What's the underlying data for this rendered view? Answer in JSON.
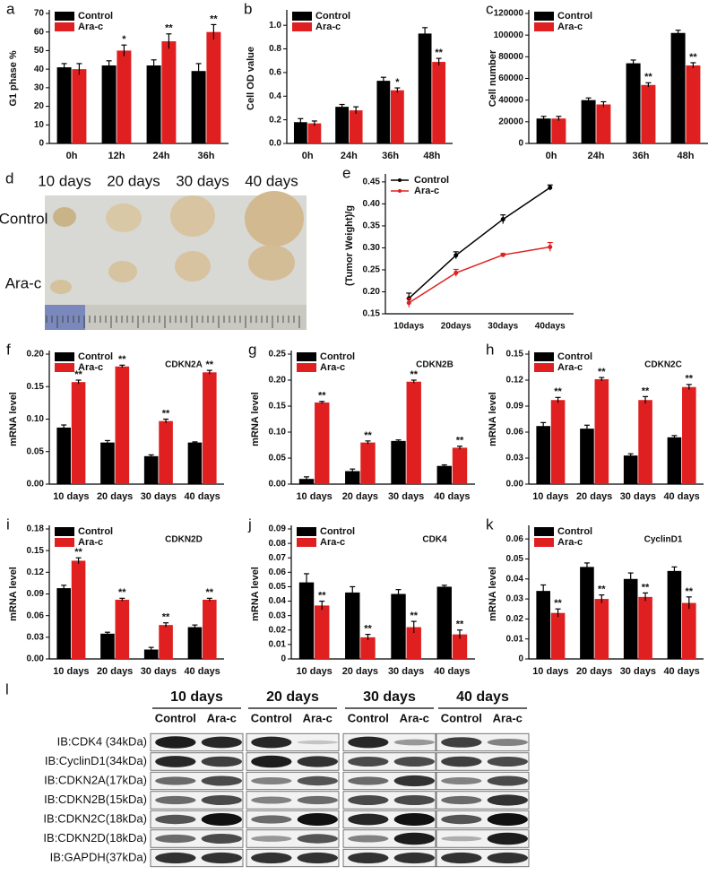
{
  "chart_data": [
    {
      "type": "bar",
      "panel": "a",
      "ylabel": "G1 phase %",
      "categories": [
        "0h",
        "12h",
        "24h",
        "36h"
      ],
      "series": [
        {
          "name": "Control",
          "color": "#000000",
          "values": [
            41,
            42,
            42,
            39
          ],
          "errors": [
            2,
            2.5,
            3,
            4
          ]
        },
        {
          "name": "Ara-c",
          "color": "#e02020",
          "values": [
            40,
            50,
            55,
            60
          ],
          "errors": [
            3,
            3,
            4,
            4
          ],
          "annotations": [
            null,
            "*",
            "**",
            "**"
          ]
        }
      ],
      "ylim": [
        0,
        70
      ],
      "yticks": [
        0,
        10,
        20,
        30,
        40,
        50,
        60,
        70
      ]
    },
    {
      "type": "bar",
      "panel": "b",
      "ylabel": "Cell OD value",
      "categories": [
        "0h",
        "24h",
        "36h",
        "48h"
      ],
      "series": [
        {
          "name": "Control",
          "color": "#000000",
          "values": [
            0.18,
            0.31,
            0.53,
            0.93
          ],
          "errors": [
            0.03,
            0.02,
            0.03,
            0.05
          ]
        },
        {
          "name": "Ara-c",
          "color": "#e02020",
          "values": [
            0.17,
            0.28,
            0.45,
            0.69
          ],
          "errors": [
            0.02,
            0.03,
            0.02,
            0.03
          ],
          "annotations": [
            null,
            null,
            "*",
            "**"
          ]
        }
      ],
      "ylim": [
        0,
        1.1
      ],
      "yticks": [
        {
          "value": 0,
          "label": "0.0"
        },
        0.2,
        0.4,
        0.6,
        0.8,
        {
          "value": 1,
          "label": "1.0"
        }
      ]
    },
    {
      "type": "bar",
      "panel": "c",
      "ylabel": "Cell number",
      "categories": [
        "0h",
        "24h",
        "36h",
        "48h"
      ],
      "series": [
        {
          "name": "Control",
          "color": "#000000",
          "values": [
            23000,
            40000,
            74000,
            102000
          ],
          "errors": [
            2000,
            2000,
            3000,
            2500
          ]
        },
        {
          "name": "Ara-c",
          "color": "#e02020",
          "values": [
            23000,
            36000,
            54000,
            72000
          ],
          "errors": [
            2000,
            2500,
            2000,
            2500
          ],
          "annotations": [
            null,
            null,
            "**",
            "**"
          ]
        }
      ],
      "ylim": [
        0,
        120000
      ],
      "yticks": [
        0,
        20000,
        40000,
        60000,
        80000,
        100000,
        120000
      ]
    },
    {
      "type": "line",
      "panel": "e",
      "ylabel": "(Tumor Weight)/g",
      "categories": [
        "10days",
        "20days",
        "30days",
        "40days"
      ],
      "series": [
        {
          "name": "Control",
          "color": "#000000",
          "values": [
            0.185,
            0.283,
            0.365,
            0.437
          ],
          "errors": [
            0.012,
            0.008,
            0.01,
            0.006
          ]
        },
        {
          "name": "Ara-c",
          "color": "#e02020",
          "values": [
            0.175,
            0.243,
            0.284,
            0.302
          ],
          "errors": [
            0.01,
            0.008,
            0.003,
            0.01
          ]
        }
      ],
      "ylim": [
        0.15,
        0.46
      ],
      "yticks": [
        0.15,
        {
          "value": 0.2,
          "label": "0.20"
        },
        0.25,
        {
          "value": 0.3,
          "label": "0.30"
        },
        0.35,
        {
          "value": 0.4,
          "label": "0.40"
        },
        0.45
      ]
    },
    {
      "type": "bar",
      "panel": "f",
      "title": "CDKN2A",
      "ylabel": "mRNA level",
      "categories": [
        "10 days",
        "20 days",
        "30 days",
        "40 days"
      ],
      "series": [
        {
          "name": "Control",
          "color": "#000000",
          "values": [
            0.087,
            0.064,
            0.043,
            0.064
          ],
          "errors": [
            0.004,
            0.003,
            0.002,
            0.001
          ]
        },
        {
          "name": "Ara-c",
          "color": "#e02020",
          "values": [
            0.157,
            0.181,
            0.097,
            0.172
          ],
          "errors": [
            0.003,
            0.002,
            0.003,
            0.003
          ],
          "annotations": [
            "**",
            "**",
            "**",
            "**"
          ]
        }
      ],
      "ylim": [
        0,
        0.2
      ],
      "yticks": [
        {
          "value": 0,
          "label": "0.00"
        },
        0.05,
        {
          "value": 0.1,
          "label": "0.10"
        },
        0.15,
        {
          "value": 0.2,
          "label": "0.20"
        }
      ]
    },
    {
      "type": "bar",
      "panel": "g",
      "title": "CDKN2B",
      "ylabel": "mRNA level",
      "categories": [
        "10 days",
        "20 days",
        "30 days",
        "40 days"
      ],
      "series": [
        {
          "name": "Control",
          "color": "#000000",
          "values": [
            0.01,
            0.025,
            0.083,
            0.035
          ],
          "errors": [
            0.004,
            0.004,
            0.002,
            0.002
          ]
        },
        {
          "name": "Ara-c",
          "color": "#e02020",
          "values": [
            0.157,
            0.08,
            0.197,
            0.07
          ],
          "errors": [
            0.002,
            0.003,
            0.003,
            0.003
          ],
          "annotations": [
            "**",
            "**",
            "**",
            "**"
          ]
        }
      ],
      "ylim": [
        0,
        0.25
      ],
      "yticks": [
        {
          "value": 0,
          "label": "0.00"
        },
        0.05,
        {
          "value": 0.1,
          "label": "0.10"
        },
        0.15,
        {
          "value": 0.2,
          "label": "0.20"
        },
        0.25
      ]
    },
    {
      "type": "bar",
      "panel": "h",
      "title": "CDKN2C",
      "ylabel": "mRNA level",
      "categories": [
        "10 days",
        "20 days",
        "30 days",
        "40 days"
      ],
      "series": [
        {
          "name": "Control",
          "color": "#000000",
          "values": [
            0.067,
            0.064,
            0.033,
            0.054
          ],
          "errors": [
            0.004,
            0.004,
            0.002,
            0.002
          ]
        },
        {
          "name": "Ara-c",
          "color": "#e02020",
          "values": [
            0.097,
            0.121,
            0.097,
            0.112
          ],
          "errors": [
            0.003,
            0.002,
            0.004,
            0.003
          ],
          "annotations": [
            "**",
            "**",
            "**",
            "**"
          ]
        }
      ],
      "ylim": [
        0,
        0.15
      ],
      "yticks": [
        {
          "value": 0,
          "label": "0.00"
        },
        0.03,
        0.06,
        0.09,
        0.12,
        0.15
      ]
    },
    {
      "type": "bar",
      "panel": "i",
      "title": "CDKN2D",
      "ylabel": "mRNA level",
      "categories": [
        "10 days",
        "20 days",
        "30 days",
        "40 days"
      ],
      "series": [
        {
          "name": "Control",
          "color": "#000000",
          "values": [
            0.098,
            0.035,
            0.013,
            0.044
          ],
          "errors": [
            0.004,
            0.002,
            0.003,
            0.003
          ]
        },
        {
          "name": "Ara-c",
          "color": "#e02020",
          "values": [
            0.136,
            0.082,
            0.047,
            0.082
          ],
          "errors": [
            0.004,
            0.002,
            0.003,
            0.002
          ],
          "annotations": [
            "**",
            "**",
            "**",
            "**"
          ]
        }
      ],
      "ylim": [
        0,
        0.18
      ],
      "yticks": [
        {
          "value": 0,
          "label": "0.00"
        },
        0.03,
        0.06,
        0.09,
        0.12,
        0.15,
        0.18
      ]
    },
    {
      "type": "bar",
      "panel": "j",
      "title": "CDK4",
      "ylabel": "mRNA level",
      "categories": [
        "10 days",
        "20 days",
        "30 days",
        "40 days"
      ],
      "series": [
        {
          "name": "Control",
          "color": "#000000",
          "values": [
            0.053,
            0.046,
            0.045,
            0.05
          ],
          "errors": [
            0.006,
            0.004,
            0.003,
            0.001
          ]
        },
        {
          "name": "Ara-c",
          "color": "#e02020",
          "values": [
            0.037,
            0.015,
            0.022,
            0.017
          ],
          "errors": [
            0.003,
            0.002,
            0.004,
            0.003
          ],
          "annotations": [
            "**",
            "**",
            "**",
            "**"
          ]
        }
      ],
      "ylim": [
        0,
        0.09
      ],
      "yticks": [
        0,
        0.01,
        0.02,
        0.03,
        0.04,
        0.05,
        0.06,
        0.07,
        0.08,
        0.09
      ]
    },
    {
      "type": "bar",
      "panel": "k",
      "title": "CyclinD1",
      "ylabel": "mRNA level",
      "categories": [
        "10 days",
        "20 days",
        "30 days",
        "40 days"
      ],
      "series": [
        {
          "name": "Control",
          "color": "#000000",
          "values": [
            0.034,
            0.046,
            0.04,
            0.044
          ],
          "errors": [
            0.003,
            0.002,
            0.003,
            0.002
          ]
        },
        {
          "name": "Ara-c",
          "color": "#e02020",
          "values": [
            0.023,
            0.03,
            0.031,
            0.028
          ],
          "errors": [
            0.002,
            0.002,
            0.002,
            0.003
          ],
          "annotations": [
            "**",
            "**",
            "**",
            "**"
          ]
        }
      ],
      "ylim": [
        0,
        0.065
      ],
      "yticks": [
        0,
        0.01,
        0.02,
        0.03,
        0.04,
        0.05,
        0.06
      ]
    }
  ],
  "photo": {
    "panel": "d",
    "columns": [
      "10 days",
      "20 days",
      "30 days",
      "40 days"
    ],
    "rows": [
      "Control",
      "Ara-c"
    ]
  },
  "blot": {
    "panel": "l",
    "groups": [
      {
        "label": "10 days",
        "lanes": [
          "Control",
          "Ara-c"
        ]
      },
      {
        "label": "20 days",
        "lanes": [
          "Control",
          "Ara-c"
        ]
      },
      {
        "label": "30 days",
        "lanes": [
          "Control",
          "Ara-c"
        ]
      },
      {
        "label": "40 days",
        "lanes": [
          "Control",
          "Ara-c"
        ]
      }
    ],
    "rows": [
      "IB:CDK4 (34kDa)",
      "IB:CyclinD1(34kDa)",
      "IB:CDKN2A(17kDa)",
      "IB:CDKN2B(15kDa)",
      "IB:CDKN2C(18kDa)",
      "IB:CDKN2D(18kDa)",
      "IB:GAPDH(37kDa)"
    ]
  }
}
